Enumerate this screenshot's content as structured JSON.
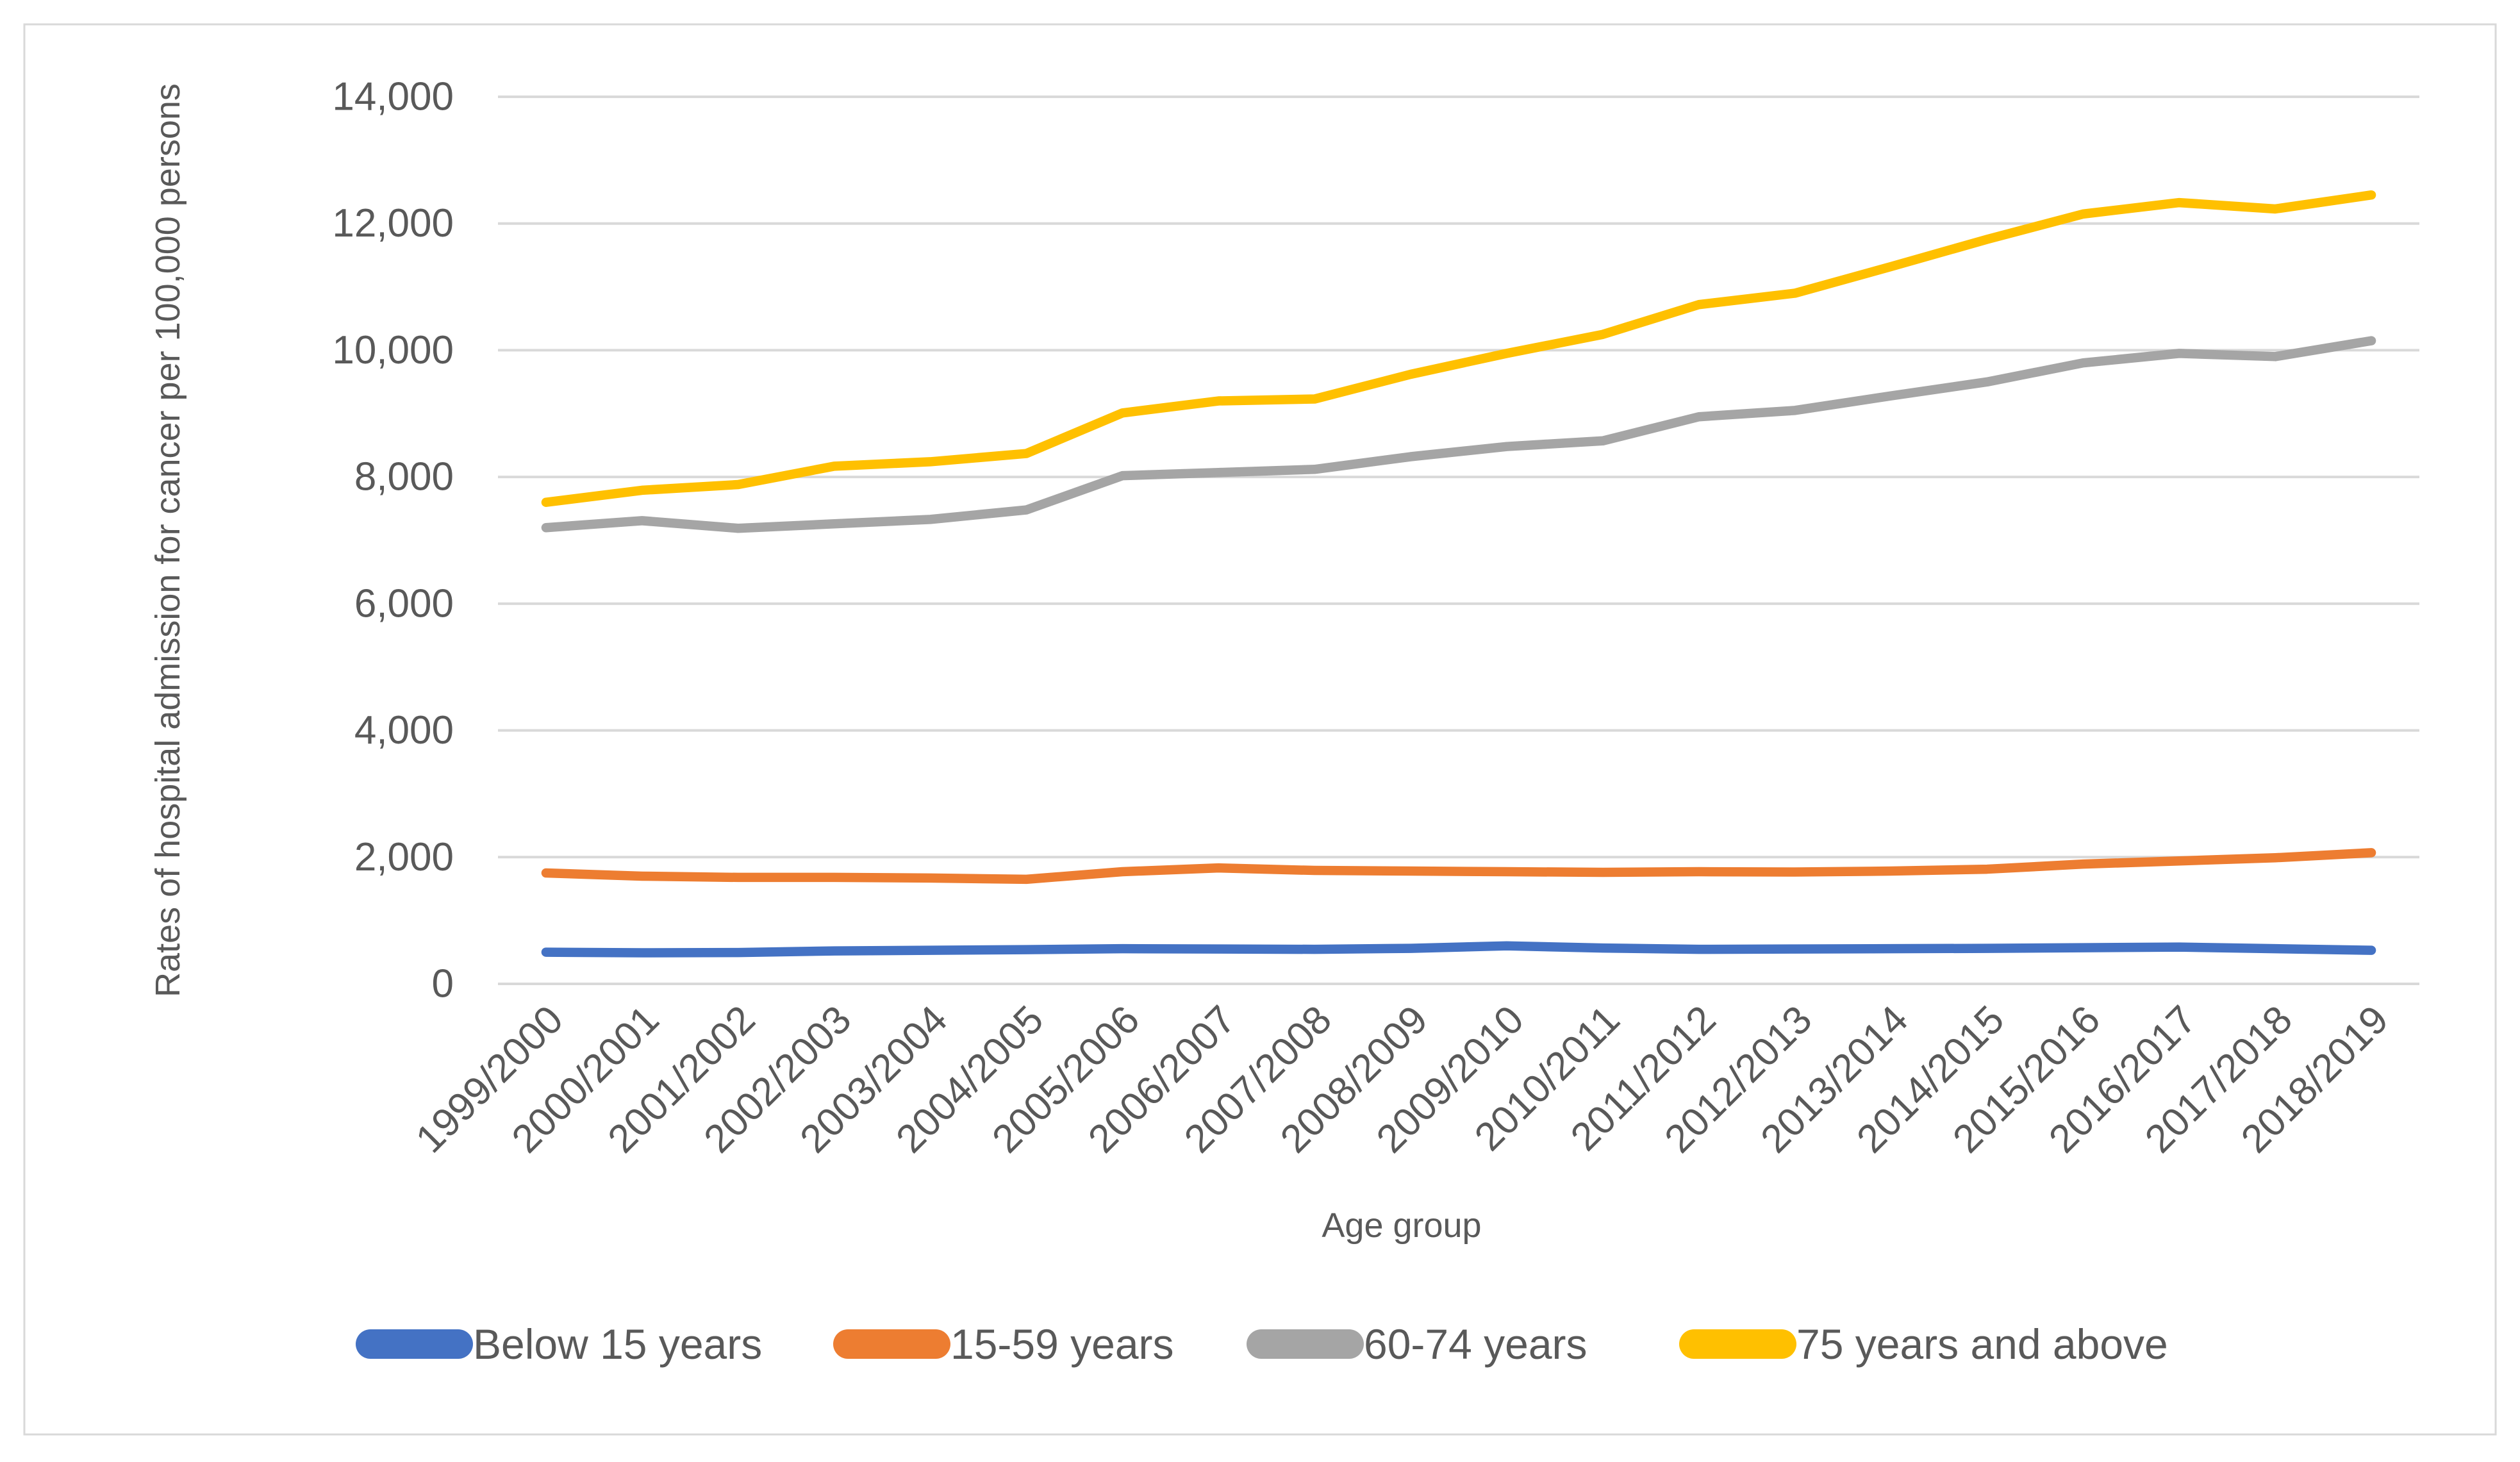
{
  "figure": {
    "background": "#FFFFFF",
    "border_color": "#D9D9D9"
  },
  "chart_data": {
    "type": "line",
    "title": "",
    "xlabel": "Age group",
    "ylabel": "Rates of hospital admission for cancer per 100,000 persons",
    "categories": [
      "1999/2000",
      "2000/2001",
      "2001/2002",
      "2002/2003",
      "2003/2004",
      "2004/2005",
      "2005/2006",
      "2006/2007",
      "2007/2008",
      "2008/2009",
      "2009/2010",
      "2010/2011",
      "2011/2012",
      "2012/2013",
      "2013/2014",
      "2014/2015",
      "2015/2016",
      "2016/2017",
      "2017/2018",
      "2018/2019"
    ],
    "series": [
      {
        "name": "Below 15 years",
        "color": "#4472C4",
        "values": [
          500,
          490,
          495,
          520,
          530,
          540,
          555,
          550,
          545,
          560,
          600,
          565,
          545,
          550,
          555,
          560,
          570,
          580,
          555,
          530
        ]
      },
      {
        "name": "15-59 years",
        "color": "#ED7D31",
        "values": [
          1750,
          1700,
          1680,
          1680,
          1670,
          1650,
          1770,
          1830,
          1790,
          1780,
          1770,
          1760,
          1770,
          1765,
          1780,
          1810,
          1890,
          1940,
          1990,
          2070
        ]
      },
      {
        "name": "60-74 years",
        "color": "#A5A5A5",
        "values": [
          7200,
          7310,
          7190,
          7260,
          7330,
          7480,
          8020,
          8070,
          8120,
          8320,
          8480,
          8570,
          8950,
          9050,
          9280,
          9500,
          9800,
          9950,
          9900,
          10150
        ]
      },
      {
        "name": "75 years and above",
        "color": "#FFC000",
        "values": [
          7600,
          7790,
          7880,
          8170,
          8240,
          8370,
          9010,
          9200,
          9230,
          9620,
          9950,
          10250,
          10720,
          10900,
          11320,
          11750,
          12150,
          12330,
          12230,
          12450
        ]
      }
    ],
    "ylim": [
      0,
      14000
    ],
    "ytick_step": 2000,
    "grid": "horizontal",
    "gridline_color": "#D9D9D9",
    "text_color": "#595959",
    "legend_position": "bottom"
  }
}
